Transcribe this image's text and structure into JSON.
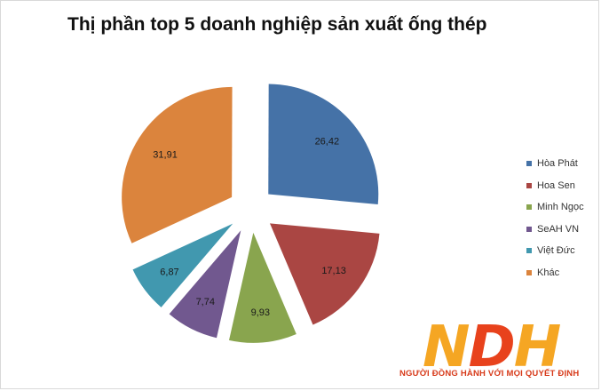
{
  "chart_data": {
    "type": "pie",
    "title": "Thị phần top 5 doanh nghiệp sản xuất ống thép",
    "categories": [
      "Hòa Phát",
      "Hoa Sen",
      "Minh Ngọc",
      "SeAH VN",
      "Việt Đức",
      "Khác"
    ],
    "values": [
      26.42,
      17.13,
      9.93,
      7.74,
      6.87,
      31.91
    ],
    "data_labels": [
      "26,42",
      "17,13",
      "9,93",
      "7,74",
      "6,87",
      "31,91"
    ],
    "colors": [
      "#4572a7",
      "#aa4643",
      "#89a54e",
      "#71588f",
      "#4198af",
      "#db843d"
    ],
    "exploded": true,
    "legend_position": "right"
  },
  "logo": {
    "letters": [
      "N",
      "D",
      "H"
    ],
    "tagline": "NGƯỜI ĐỒNG HÀNH VỚI MỌI QUYẾT ĐỊNH"
  }
}
